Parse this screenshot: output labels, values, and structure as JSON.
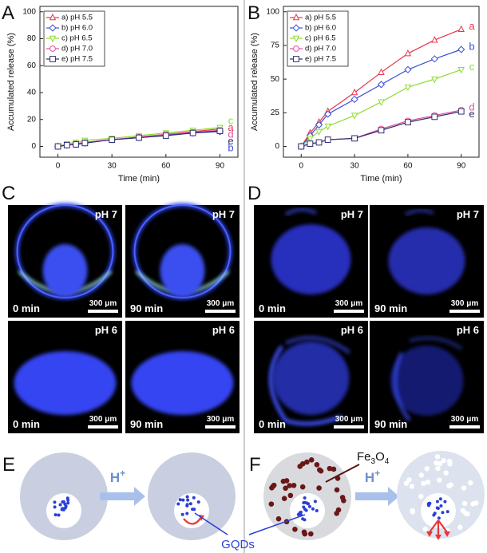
{
  "chart_data": [
    {
      "type": "line",
      "panel_label": "A",
      "x_label": "Time (min)",
      "y_label": "Accumulated release (%)",
      "x": [
        0,
        5,
        10,
        15,
        30,
        45,
        60,
        75,
        90
      ],
      "xlim": [
        -10,
        100
      ],
      "xticks": [
        0,
        30,
        60,
        90
      ],
      "ylim": [
        -8,
        104
      ],
      "yticks": [
        0,
        20,
        40,
        60,
        80,
        100
      ],
      "legend": "upper left",
      "series": [
        {
          "name": "a) pH 5.5",
          "end_label": "a",
          "color": "#e8344e",
          "marker": "triangle-up",
          "values": [
            0,
            1,
            2,
            3,
            5,
            7,
            9,
            11,
            13
          ]
        },
        {
          "name": "b) pH 6.0",
          "end_label": "b",
          "color": "#3b4fd8",
          "marker": "diamond",
          "values": [
            0,
            1,
            1.5,
            2.5,
            5,
            6.5,
            8.5,
            10,
            11
          ]
        },
        {
          "name": "c) pH 6.5",
          "end_label": "c",
          "color": "#8fdc2e",
          "marker": "triangle-down",
          "values": [
            0,
            2,
            3,
            4.5,
            6,
            8,
            10,
            12,
            14
          ]
        },
        {
          "name": "d) pH 7.0",
          "end_label": "d",
          "color": "#e64da0",
          "marker": "circle",
          "values": [
            0,
            1,
            2,
            3,
            5,
            7,
            9,
            10.5,
            12
          ]
        },
        {
          "name": "e) pH 7.5",
          "end_label": "e",
          "color": "#2f2f6e",
          "marker": "square",
          "values": [
            0,
            1,
            1.5,
            2.5,
            5,
            6.5,
            8,
            10,
            11.5
          ]
        }
      ]
    },
    {
      "type": "line",
      "panel_label": "B",
      "x_label": "Time (min)",
      "y_label": "Accumulated release (%)",
      "x": [
        0,
        5,
        10,
        15,
        30,
        45,
        60,
        75,
        90
      ],
      "xlim": [
        -10,
        100
      ],
      "xticks": [
        0,
        30,
        60,
        90
      ],
      "ylim": [
        -8,
        104
      ],
      "yticks": [
        0,
        25,
        50,
        75,
        100
      ],
      "legend": "upper left",
      "series": [
        {
          "name": "a) pH 5.5",
          "end_label": "a",
          "color": "#e8344e",
          "marker": "triangle-up",
          "values": [
            0,
            10,
            18,
            26,
            40,
            55,
            69,
            79,
            87
          ]
        },
        {
          "name": "b) pH 6.0",
          "end_label": "b",
          "color": "#3b4fd8",
          "marker": "diamond",
          "values": [
            0,
            8,
            16,
            24,
            35,
            46,
            57,
            65,
            72
          ]
        },
        {
          "name": "c) pH 6.5",
          "end_label": "c",
          "color": "#8fdc2e",
          "marker": "triangle-down",
          "values": [
            0,
            6,
            11,
            15,
            23,
            33,
            44,
            50,
            57
          ]
        },
        {
          "name": "d) pH 7.0",
          "end_label": "d",
          "color": "#e64da0",
          "marker": "circle",
          "values": [
            0,
            2,
            3,
            5,
            6,
            13,
            19,
            23,
            27
          ]
        },
        {
          "name": "e) pH 7.5",
          "end_label": "e",
          "color": "#2f2f6e",
          "marker": "square",
          "values": [
            0,
            2,
            3,
            5,
            6,
            12,
            18,
            22,
            26
          ]
        }
      ]
    }
  ],
  "micrographs": [
    {
      "panel_label": "C",
      "images": [
        {
          "ph": "pH 7",
          "time": "0 min",
          "scale_bar": "300 μm"
        },
        {
          "ph": "pH 7",
          "time": "90 min",
          "scale_bar": "300 μm"
        },
        {
          "ph": "pH 6",
          "time": "0 min",
          "scale_bar": "300 μm"
        },
        {
          "ph": "pH 6",
          "time": "90 min",
          "scale_bar": "300 μm"
        }
      ]
    },
    {
      "panel_label": "D",
      "images": [
        {
          "ph": "pH 7",
          "time": "0 min",
          "scale_bar": "300 μm"
        },
        {
          "ph": "pH 7",
          "time": "90 min",
          "scale_bar": "300 μm"
        },
        {
          "ph": "pH 6",
          "time": "0 min",
          "scale_bar": "300 μm"
        },
        {
          "ph": "pH 6",
          "time": "90 min",
          "scale_bar": "300 μm"
        }
      ]
    }
  ],
  "schematics": [
    {
      "panel_label": "E",
      "acid": {
        "base": "H",
        "sup": "+"
      }
    },
    {
      "panel_label": "F",
      "acid": {
        "base": "H",
        "sup": "+"
      },
      "particle": [
        "Fe",
        "3",
        "O",
        "4"
      ]
    }
  ],
  "shared_label": "GQDs"
}
